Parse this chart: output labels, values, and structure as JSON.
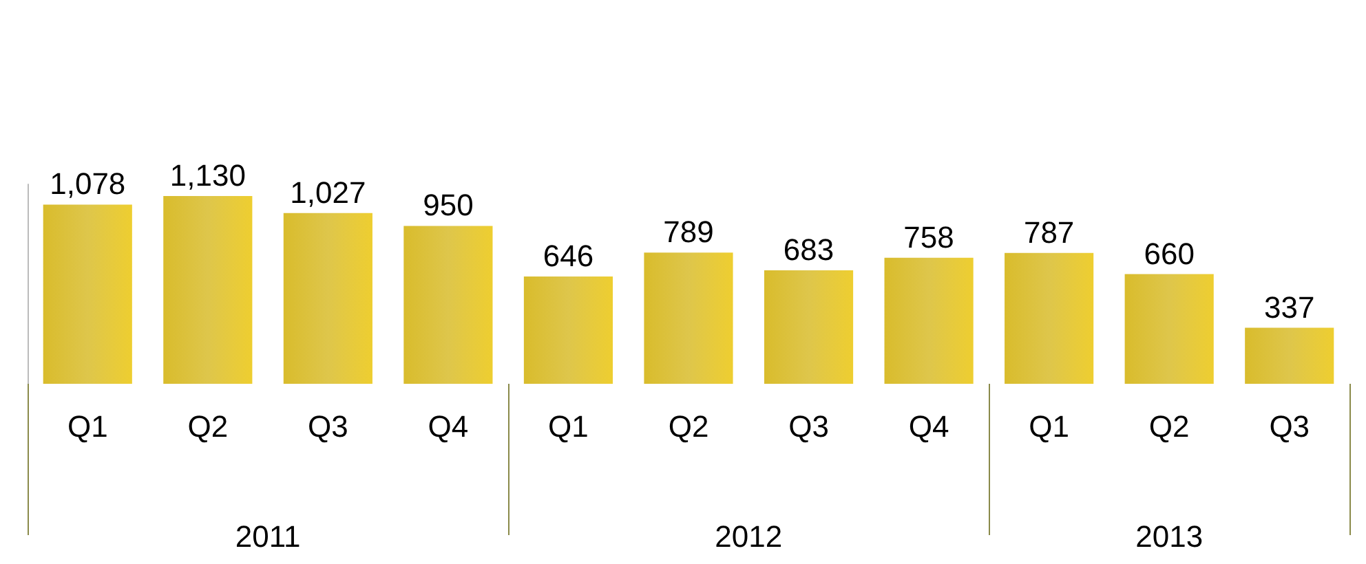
{
  "chart_data": {
    "type": "bar",
    "categories": [
      "Q1",
      "Q2",
      "Q3",
      "Q4",
      "Q1",
      "Q2",
      "Q3",
      "Q4",
      "Q1",
      "Q2",
      "Q3"
    ],
    "values": [
      1078,
      1130,
      1027,
      950,
      646,
      789,
      683,
      758,
      787,
      660,
      337
    ],
    "color": "#d9bc2c",
    "value_labels": [
      "1,078",
      "1,130",
      "1,027",
      "950",
      "646",
      "789",
      "683",
      "758",
      "787",
      "660",
      "337"
    ],
    "tick_labels": "x",
    "grid": false,
    "annotations": [
      "2011",
      "2012",
      "2013"
    ]
  }
}
